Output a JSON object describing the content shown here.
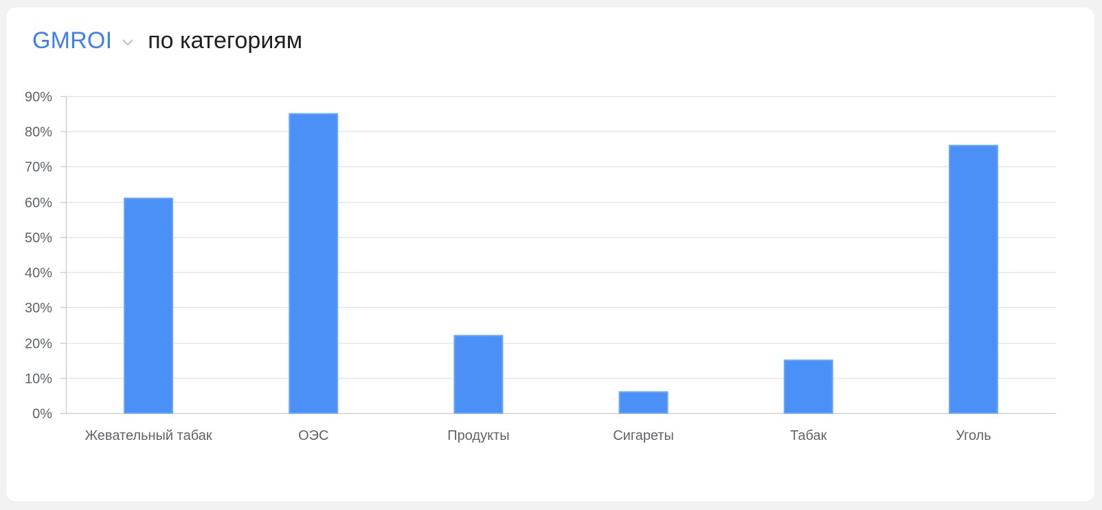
{
  "header": {
    "metric_label": "GMROI",
    "suffix": "по категориям"
  },
  "colors": {
    "bar": "#4a90f7",
    "bar_stroke": "#6aa6fb",
    "accent": "#3b7ff0",
    "grid": "#e6e6e6",
    "axis": "#cfcfcf",
    "text": "#5f6368"
  },
  "chart_data": {
    "type": "bar",
    "categories": [
      "Жевательный табак",
      "ОЭС",
      "Продукты",
      "Сигареты",
      "Табак",
      "Уголь"
    ],
    "values": [
      61,
      85,
      22,
      6,
      15,
      76
    ],
    "ylim": [
      0,
      90
    ],
    "yticks": [
      0,
      10,
      20,
      30,
      40,
      50,
      60,
      70,
      80,
      90
    ],
    "ytick_labels": [
      "0%",
      "10%",
      "20%",
      "30%",
      "40%",
      "50%",
      "60%",
      "70%",
      "80%",
      "90%"
    ],
    "grid": true,
    "unit": "%"
  }
}
